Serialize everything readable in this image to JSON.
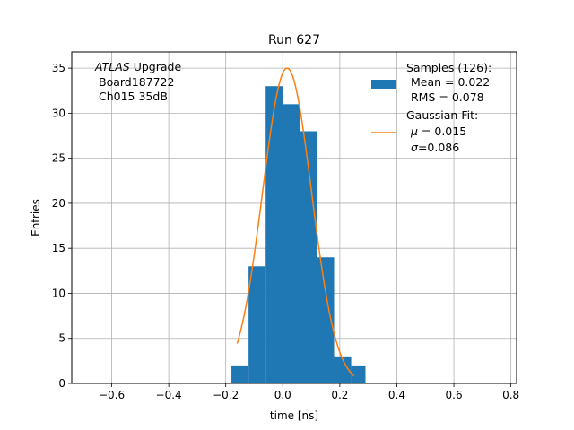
{
  "chart_data": {
    "type": "bar",
    "title": "Run 627",
    "xlabel": "time [ns]",
    "ylabel": "Entries",
    "xlim": [
      -0.74,
      0.82
    ],
    "ylim": [
      0,
      36.8
    ],
    "xticks": [
      -0.6,
      -0.4,
      -0.2,
      0.0,
      0.2,
      0.4,
      0.6,
      0.8
    ],
    "xtick_labels": [
      "−0.6",
      "−0.4",
      "−0.2",
      "0.0",
      "0.2",
      "0.4",
      "0.6",
      "0.8"
    ],
    "yticks": [
      0,
      5,
      10,
      15,
      20,
      25,
      30,
      35
    ],
    "ytick_labels": [
      "0",
      "5",
      "10",
      "15",
      "20",
      "25",
      "30",
      "35"
    ],
    "grid": true,
    "legend_position": "top-right",
    "annotation": {
      "line1_italic": "ATLAS",
      "line1_rest": " Upgrade",
      "line2": "Board187722",
      "line3": "Ch015 35dB"
    },
    "histogram": {
      "name": "Samples (126):",
      "color": "#1f77b4",
      "bin_edges": [
        -0.18,
        -0.12,
        -0.06,
        0.0,
        0.06,
        0.12,
        0.18,
        0.24,
        0.29
      ],
      "counts": [
        2,
        13,
        33,
        31,
        28,
        14,
        3,
        2
      ],
      "stat_lines": [
        "Mean = 0.022",
        "RMS = 0.078"
      ]
    },
    "gaussian_fit": {
      "name": "Gaussian Fit:",
      "color": "#ff7f0e",
      "amplitude": 35,
      "mu": 0.015,
      "sigma": 0.086,
      "x_range": [
        -0.16,
        0.25
      ],
      "mu_value": " = 0.015",
      "sigma_value": "=0.086"
    }
  }
}
